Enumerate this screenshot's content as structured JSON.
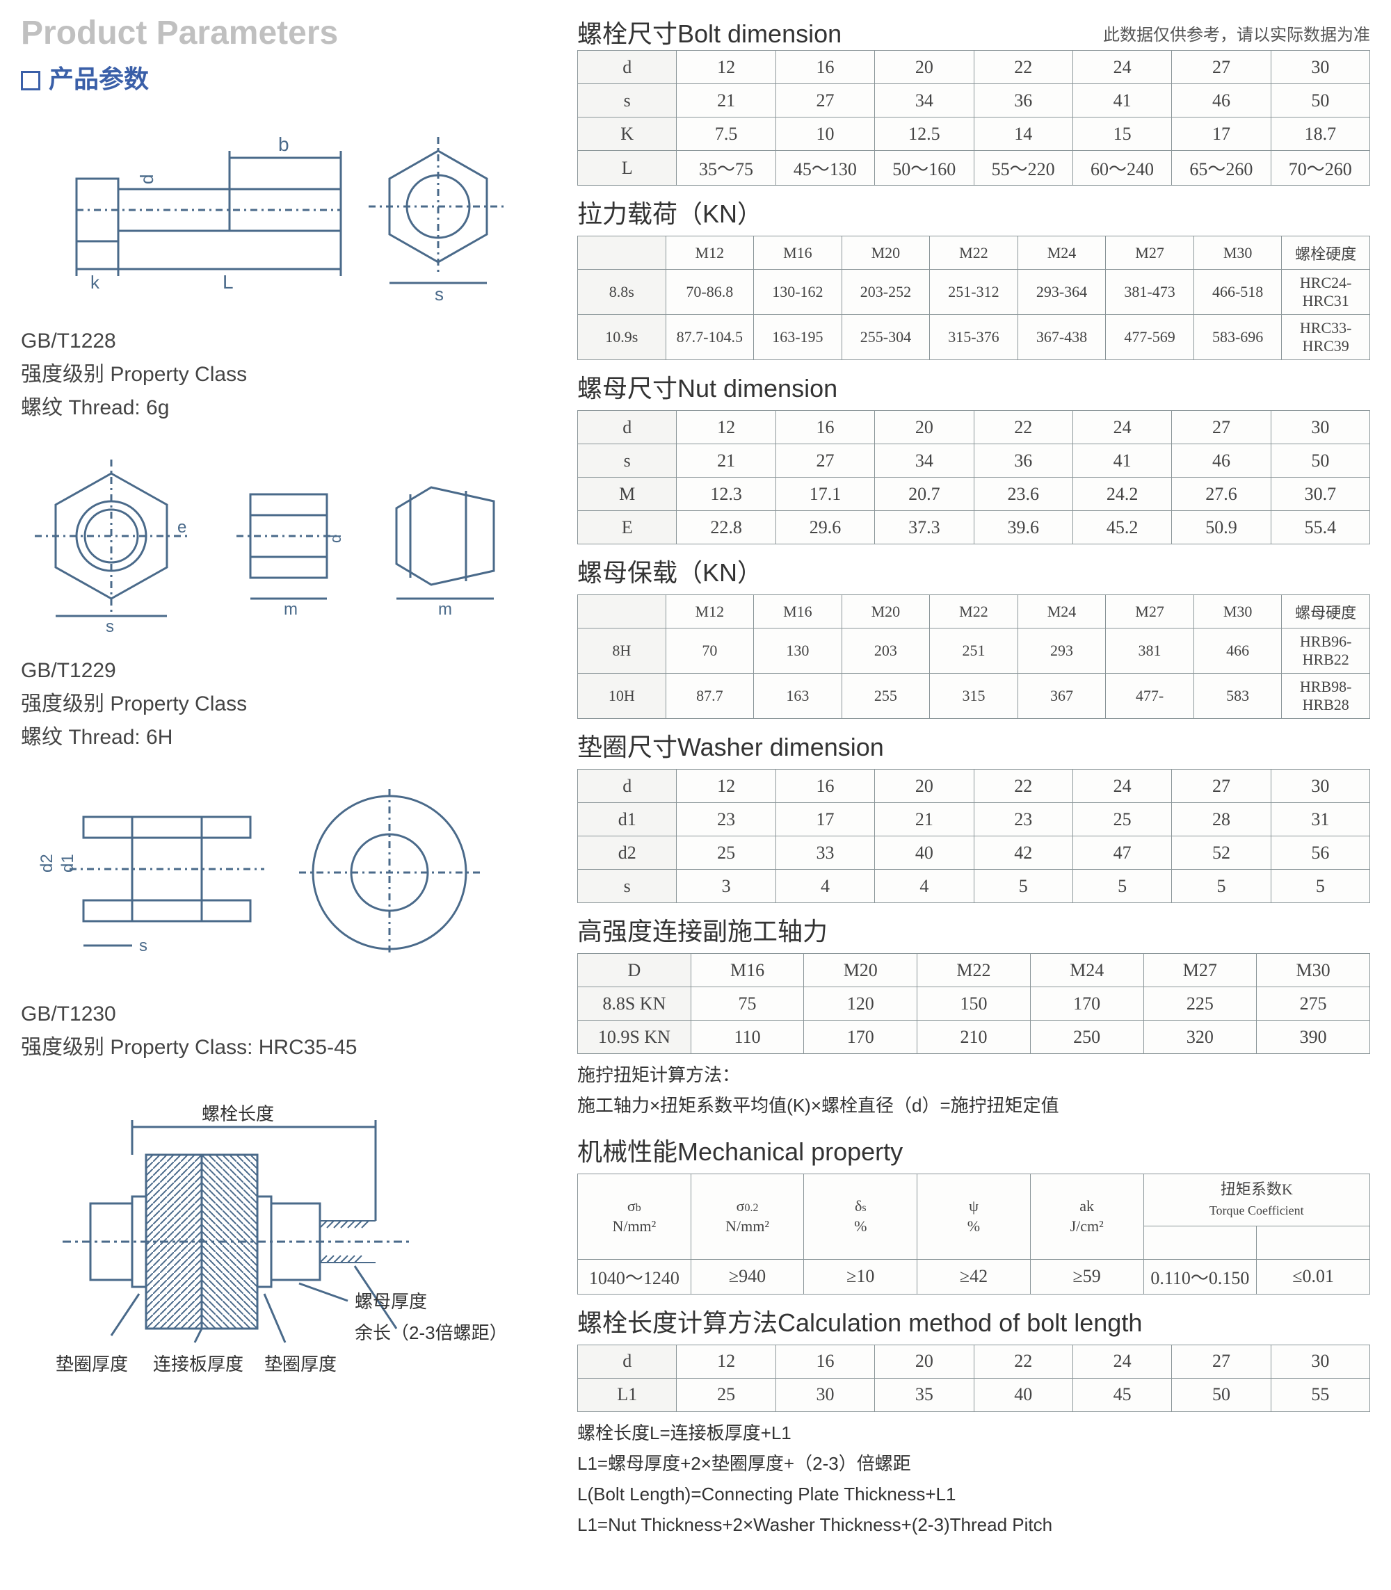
{
  "titles": {
    "gray": "Product Parameters",
    "blue": "产品参数"
  },
  "left": {
    "spec1": {
      "code": "GB/T1228",
      "class": "强度级别 Property Class",
      "thread": "螺纹 Thread: 6g"
    },
    "spec2": {
      "code": "GB/T1229",
      "class": "强度级别 Property Class",
      "thread": "螺纹 Thread: 6H"
    },
    "spec3": {
      "code": "GB/T1230",
      "class": "强度级别 Property Class: HRC35-45"
    },
    "assembly": {
      "bolt_length": "螺栓长度",
      "washer_thick": "垫圈厚度",
      "plate_thick": "连接板厚度",
      "nut_thick": "螺母厚度",
      "remain": "余长（2-3倍螺距）"
    }
  },
  "right": {
    "bolt_dim": {
      "title": "螺栓尺寸Bolt dimension",
      "note": "此数据仅供参考，请以实际数据为准",
      "rows": [
        [
          "d",
          "12",
          "16",
          "20",
          "22",
          "24",
          "27",
          "30"
        ],
        [
          "s",
          "21",
          "27",
          "34",
          "36",
          "41",
          "46",
          "50"
        ],
        [
          "K",
          "7.5",
          "10",
          "12.5",
          "14",
          "15",
          "17",
          "18.7"
        ],
        [
          "L",
          "35～75",
          "45～130",
          "50～160",
          "55～220",
          "60～240",
          "65～260",
          "70～260"
        ]
      ]
    },
    "tension": {
      "title": "拉力载荷（KN）",
      "rows": [
        [
          "",
          "M12",
          "M16",
          "M20",
          "M22",
          "M24",
          "M27",
          "M30",
          "螺栓硬度"
        ],
        [
          "8.8s",
          "70-86.8",
          "130-162",
          "203-252",
          "251-312",
          "293-364",
          "381-473",
          "466-518",
          "HRC24-HRC31"
        ],
        [
          "10.9s",
          "87.7-104.5",
          "163-195",
          "255-304",
          "315-376",
          "367-438",
          "477-569",
          "583-696",
          "HRC33-HRC39"
        ]
      ]
    },
    "nut_dim": {
      "title": "螺母尺寸Nut dimension",
      "rows": [
        [
          "d",
          "12",
          "16",
          "20",
          "22",
          "24",
          "27",
          "30"
        ],
        [
          "s",
          "21",
          "27",
          "34",
          "36",
          "41",
          "46",
          "50"
        ],
        [
          "M",
          "12.3",
          "17.1",
          "20.7",
          "23.6",
          "24.2",
          "27.6",
          "30.7"
        ],
        [
          "E",
          "22.8",
          "29.6",
          "37.3",
          "39.6",
          "45.2",
          "50.9",
          "55.4"
        ]
      ]
    },
    "nut_load": {
      "title": "螺母保载（KN）",
      "rows": [
        [
          "",
          "M12",
          "M16",
          "M20",
          "M22",
          "M24",
          "M27",
          "M30",
          "螺母硬度"
        ],
        [
          "8H",
          "70",
          "130",
          "203",
          "251",
          "293",
          "381",
          "466",
          "HRB96-HRB22"
        ],
        [
          "10H",
          "87.7",
          "163",
          "255",
          "315",
          "367",
          "477-",
          "583",
          "HRB98-HRB28"
        ]
      ]
    },
    "washer_dim": {
      "title": "垫圈尺寸Washer dimension",
      "rows": [
        [
          "d",
          "12",
          "16",
          "20",
          "22",
          "24",
          "27",
          "30"
        ],
        [
          "d1",
          "23",
          "17",
          "21",
          "23",
          "25",
          "28",
          "31"
        ],
        [
          "d2",
          "25",
          "33",
          "40",
          "42",
          "47",
          "52",
          "56"
        ],
        [
          "s",
          "3",
          "4",
          "4",
          "5",
          "5",
          "5",
          "5"
        ]
      ]
    },
    "axial": {
      "title": "高强度连接副施工轴力",
      "rows": [
        [
          "D",
          "M16",
          "M20",
          "M22",
          "M24",
          "M27",
          "M30"
        ],
        [
          "8.8S KN",
          "75",
          "120",
          "150",
          "170",
          "225",
          "275"
        ],
        [
          "10.9S KN",
          "110",
          "170",
          "210",
          "250",
          "320",
          "390"
        ]
      ],
      "note1": "施拧扭矩计算方法：",
      "note2": "施工轴力×扭矩系数平均值(K)×螺栓直径（d）=施拧扭矩定值"
    },
    "mech": {
      "title": "机械性能Mechanical property",
      "hdr": [
        "σb N/mm²",
        "σ0.2 N/mm²",
        "δs %",
        "ψ %",
        "ak J/cm²",
        "扭矩系数K Torque Coefficient",
        ""
      ],
      "row": [
        "1040～1240",
        "≥940",
        "≥10",
        "≥42",
        "≥59",
        "0.110～0.150",
        "≤0.01"
      ]
    },
    "calc": {
      "title": "螺栓长度计算方法Calculation method of bolt length",
      "rows": [
        [
          "d",
          "12",
          "16",
          "20",
          "22",
          "24",
          "27",
          "30"
        ],
        [
          "L1",
          "25",
          "30",
          "35",
          "40",
          "45",
          "50",
          "55"
        ]
      ],
      "notes": [
        "螺栓长度L=连接板厚度+L1",
        "L1=螺母厚度+2×垫圈厚度+（2-3）倍螺距",
        "L(Bolt Length)=Connecting Plate Thickness+L1",
        "L1=Nut Thickness+2×Washer Thickness+(2-3)Thread Pitch"
      ]
    }
  },
  "colors": {
    "line": "#4a6a8a",
    "border": "#8a9598"
  }
}
